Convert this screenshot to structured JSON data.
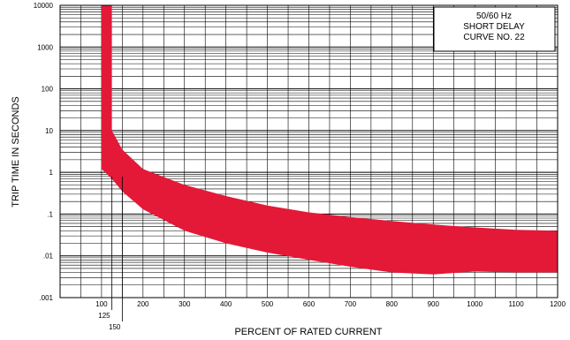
{
  "chart_data": {
    "type": "area",
    "xlabel": "PERCENT OF RATED CURRENT",
    "ylabel": "TRIP TIME IN SECONDS",
    "y_scale": "log",
    "grid": true,
    "xlim": [
      0,
      1200
    ],
    "ylim": [
      0.001,
      10000
    ],
    "x_ticks": [
      "100",
      "200",
      "300",
      "400",
      "500",
      "600",
      "700",
      "800",
      "900",
      "1000",
      "1100",
      "1200"
    ],
    "x_ticks_extra": [
      "125",
      "150"
    ],
    "y_ticks": [
      ".001",
      ".01",
      ".1",
      "1",
      "10",
      "100",
      "1000",
      "10000"
    ],
    "legend_lines": [
      "50/60 Hz",
      "SHORT DELAY",
      "CURVE NO. 22"
    ],
    "legend_position": "top-right",
    "band_color": "#E31937",
    "band_upper": [
      {
        "x": 100,
        "y": 10000
      },
      {
        "x": 125,
        "y": 10000
      },
      {
        "x": 125,
        "y": 10
      },
      {
        "x": 150,
        "y": 3.5
      },
      {
        "x": 200,
        "y": 1.2
      },
      {
        "x": 300,
        "y": 0.5
      },
      {
        "x": 400,
        "y": 0.27
      },
      {
        "x": 500,
        "y": 0.16
      },
      {
        "x": 600,
        "y": 0.11
      },
      {
        "x": 700,
        "y": 0.085
      },
      {
        "x": 800,
        "y": 0.068
      },
      {
        "x": 900,
        "y": 0.056
      },
      {
        "x": 1000,
        "y": 0.048
      },
      {
        "x": 1100,
        "y": 0.042
      },
      {
        "x": 1200,
        "y": 0.04
      }
    ],
    "band_lower": [
      {
        "x": 1200,
        "y": 0.004
      },
      {
        "x": 1100,
        "y": 0.004
      },
      {
        "x": 1000,
        "y": 0.0042
      },
      {
        "x": 900,
        "y": 0.0036
      },
      {
        "x": 800,
        "y": 0.004
      },
      {
        "x": 700,
        "y": 0.0055
      },
      {
        "x": 600,
        "y": 0.008
      },
      {
        "x": 500,
        "y": 0.012
      },
      {
        "x": 400,
        "y": 0.02
      },
      {
        "x": 300,
        "y": 0.04
      },
      {
        "x": 200,
        "y": 0.13
      },
      {
        "x": 150,
        "y": 0.35
      },
      {
        "x": 125,
        "y": 0.7
      },
      {
        "x": 100,
        "y": 1.2
      }
    ]
  }
}
